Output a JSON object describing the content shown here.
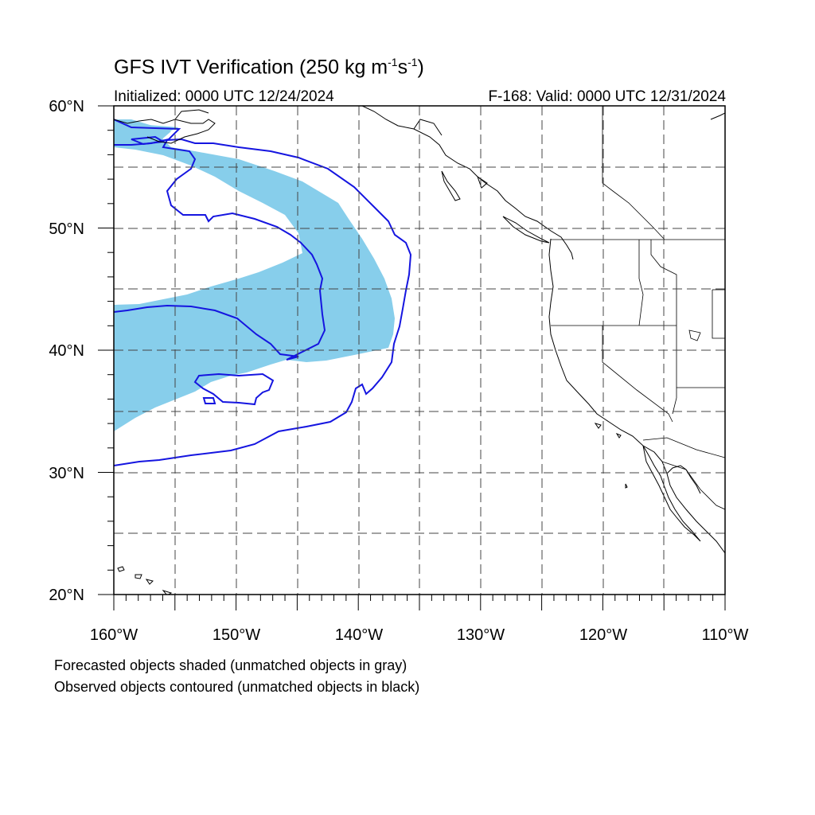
{
  "title": {
    "main": "GFS IVT Verification (250 kg m",
    "sup1": "-1",
    "mid": "s",
    "sup2": "-1",
    "end": ")"
  },
  "initialized": "Initialized: 0000 UTC 12/24/2024",
  "valid": "F-168: Valid: 0000 UTC 12/31/2024",
  "lat_labels": [
    "60°N",
    "50°N",
    "40°N",
    "30°N",
    "20°N"
  ],
  "lon_labels": [
    "160°W",
    "150°W",
    "140°W",
    "130°W",
    "120°W",
    "110°W"
  ],
  "legend_notes": [
    "Forecasted objects shaded (unmatched objects in gray)",
    "Observed objects contoured (unmatched objects in black)"
  ],
  "colors": {
    "forecast_shade": "#87ceeb",
    "observed_contour": "#1515e0",
    "coastline": "#000000",
    "grid": "#555555"
  },
  "extent": {
    "lon_min": -160,
    "lon_max": -110,
    "lat_min": 20,
    "lat_max": 60
  }
}
